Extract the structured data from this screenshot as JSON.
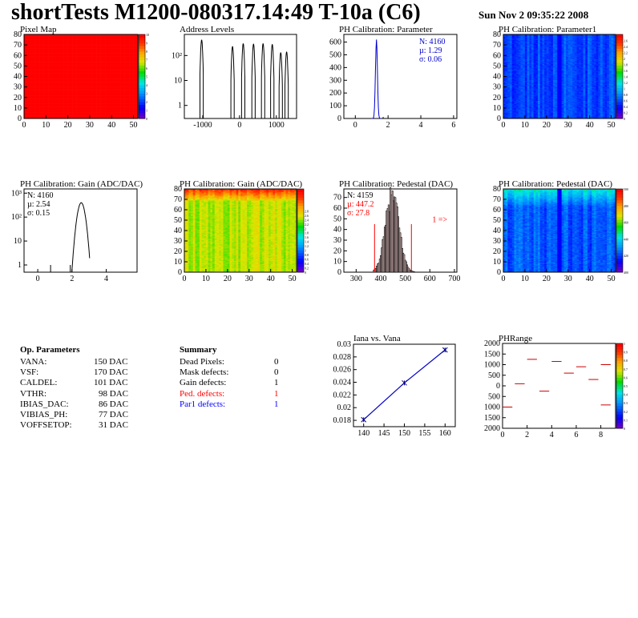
{
  "header": {
    "title": "shortTests M1200-080317.14:49 T-10a (C6)",
    "date": "Sun Nov  2 09:35:22 2008"
  },
  "chart_data": [
    {
      "id": "pixel-map",
      "type": "heatmap",
      "title": "Pixel Map",
      "xlim": [
        0,
        52
      ],
      "ylim": [
        0,
        80
      ],
      "xticks": [
        0,
        10,
        20,
        30,
        40,
        50
      ],
      "yticks": [
        0,
        10,
        20,
        30,
        40,
        50,
        60,
        70,
        80
      ],
      "zlim": [
        0,
        10
      ],
      "zticks": [
        0,
        1,
        2,
        3,
        4,
        5,
        6,
        7,
        8,
        9,
        10
      ],
      "uniform_value": 10
    },
    {
      "id": "address-levels",
      "type": "bar",
      "title": "Address Levels",
      "log_y": true,
      "xlim": [
        -1500,
        1550
      ],
      "xticks": [
        -1000,
        0,
        1000
      ],
      "ylim": [
        0.3,
        700
      ],
      "yticks": [
        {
          "value": 1,
          "label": "1"
        },
        {
          "value": 10,
          "label": "10"
        },
        {
          "value": 100,
          "label": "10²"
        }
      ],
      "peaks": [
        {
          "center": -1030,
          "height": 420
        },
        {
          "center": -190,
          "height": 230
        },
        {
          "center": 100,
          "height": 300
        },
        {
          "center": 380,
          "height": 290
        },
        {
          "center": 640,
          "height": 300
        },
        {
          "center": 890,
          "height": 280
        },
        {
          "center": 1120,
          "height": 130
        },
        {
          "center": 1280,
          "height": 140
        }
      ]
    },
    {
      "id": "ph-calibration-parameter",
      "type": "bar",
      "title": "PH Calibration: Parameter",
      "xlim": [
        -0.7,
        6.2
      ],
      "xticks": [
        0,
        2,
        4,
        6
      ],
      "ylim": [
        0,
        660
      ],
      "yticks": [
        0,
        100,
        200,
        300,
        400,
        500,
        600
      ],
      "stats": {
        "n": "N: 4160",
        "mean": "µ: 1.29",
        "sigma": "σ: 0.06"
      },
      "mean": 1.29,
      "sigma": 0.06,
      "peak": 620,
      "outliers": [
        {
          "x": 1.7,
          "y": 2
        }
      ]
    },
    {
      "id": "ph-calibration-parameter1",
      "type": "heatmap",
      "title": "PH Calibration: Parameter1",
      "xlim": [
        0,
        52
      ],
      "ylim": [
        0,
        80
      ],
      "xticks": [
        0,
        10,
        20,
        30,
        40,
        50
      ],
      "yticks": [
        0,
        10,
        20,
        30,
        40,
        50,
        60,
        70,
        80
      ],
      "zlim": [
        0,
        2.8
      ],
      "zticks": [
        0,
        0.2,
        0.4,
        0.6,
        0.8,
        1,
        1.2,
        1.4,
        1.6,
        1.8,
        2,
        2.2,
        2.4,
        2.6
      ],
      "base_value": 0.7
    },
    {
      "id": "ph-calibration-gain",
      "type": "bar",
      "title": "PH Calibration: Gain (ADC/DAC)",
      "log_y": true,
      "xlim": [
        -0.8,
        5.8
      ],
      "xticks": [
        0,
        2,
        4
      ],
      "ylim": [
        0.5,
        1500
      ],
      "yticks": [
        {
          "value": 1,
          "label": "1"
        },
        {
          "value": 10,
          "label": "10"
        },
        {
          "value": 100,
          "label": "10²"
        },
        {
          "value": 1000,
          "label": "10³"
        }
      ],
      "stats": {
        "n": "N: 4160",
        "mean": "µ: 2.54",
        "sigma": "σ: 0.15"
      },
      "mean": 2.54,
      "sigma": 0.15,
      "peak": 400,
      "outliers": [
        {
          "x": 0.75,
          "y": 1
        },
        {
          "x": 1.9,
          "y": 1
        }
      ]
    },
    {
      "id": "ph-calibration-gain-map",
      "type": "heatmap",
      "title": "PH Calibration: Gain (ADC/DAC)",
      "xlim": [
        0,
        52
      ],
      "ylim": [
        0,
        80
      ],
      "xticks": [
        0,
        10,
        20,
        30,
        40,
        50
      ],
      "yticks": [
        0,
        10,
        20,
        30,
        40,
        50,
        60,
        70,
        80
      ],
      "zlim": [
        0,
        3.8
      ],
      "zticks": [
        0,
        0.2,
        0.4,
        0.6,
        0.8,
        1,
        1.2,
        1.4,
        1.6,
        1.8,
        2,
        2.2,
        2.4,
        2.6,
        2.8
      ],
      "base_value": 2.5
    },
    {
      "id": "ph-calibration-pedestal",
      "type": "bar",
      "title": "PH Calibration: Pedestal (DAC)",
      "xlim": [
        250,
        710
      ],
      "xticks": [
        300,
        400,
        500,
        600,
        700
      ],
      "ylim": [
        0,
        78
      ],
      "yticks": [
        0,
        10,
        20,
        30,
        40,
        50,
        60,
        70
      ],
      "stats": {
        "n": "N: 4159",
        "mean": "µ: 447.2",
        "sigma": "σ: 27.8"
      },
      "mean": 447.2,
      "sigma": 27.8,
      "peak": 72,
      "cut_lines": [
        375,
        525
      ],
      "cut_height": 45,
      "annotation": "1 =>",
      "annotation_x": 610,
      "annotation_y": 47
    },
    {
      "id": "ph-calibration-pedestal-map",
      "type": "heatmap",
      "title": "PH Calibration: Pedestal (DAC)",
      "xlim": [
        0,
        52
      ],
      "ylim": [
        0,
        80
      ],
      "xticks": [
        0,
        10,
        20,
        30,
        40,
        50
      ],
      "yticks": [
        0,
        10,
        20,
        30,
        40,
        50,
        60,
        70,
        80
      ],
      "zlim": [
        400,
        500
      ],
      "zticks": [
        400,
        420,
        440,
        460,
        480,
        500
      ],
      "base_value": 447
    },
    {
      "id": "iana-vs-vana",
      "type": "line",
      "title": "Iana vs. Vana",
      "xlim": [
        137.5,
        162.5
      ],
      "ylim": [
        0.017,
        0.03
      ],
      "xticks": [
        140,
        145,
        150,
        155,
        160
      ],
      "yticks": [
        0.018,
        0.02,
        0.022,
        0.024,
        0.026,
        0.028,
        0.03
      ],
      "x": [
        140,
        150,
        160
      ],
      "y": [
        0.0181,
        0.0239,
        0.0291
      ]
    },
    {
      "id": "ph-range",
      "type": "scatter",
      "title": "PHRange",
      "xlim": [
        0,
        9.2
      ],
      "ylim": [
        -2000,
        2000
      ],
      "xticks": [
        0,
        2,
        4,
        6,
        8
      ],
      "yticks": [
        -2000,
        -1500,
        -1000,
        -500,
        0,
        500,
        1000,
        1500,
        2000
      ],
      "ytick_labels": [
        "2000",
        "1500",
        "1000",
        "500",
        "0",
        "500",
        "1000",
        "1500",
        "2000"
      ],
      "zticks": [
        0,
        0.1,
        0.2,
        0.3,
        0.4,
        0.5,
        0.6,
        0.7,
        0.8,
        0.9,
        1
      ],
      "segments": [
        {
          "x0": 0,
          "x1": 0.8,
          "y": -1000
        },
        {
          "x0": 1,
          "x1": 1.8,
          "y": 100
        },
        {
          "x0": 2,
          "x1": 2.8,
          "y": 1250
        },
        {
          "x0": 3,
          "x1": 3.8,
          "y": -250
        },
        {
          "x0": 4,
          "x1": 4.8,
          "y": 1150
        },
        {
          "x0": 5,
          "x1": 5.8,
          "y": 600
        },
        {
          "x0": 6,
          "x1": 6.8,
          "y": 900
        },
        {
          "x0": 7,
          "x1": 7.8,
          "y": 300
        },
        {
          "x0": 8,
          "x1": 8.8,
          "y": 1000
        },
        {
          "x0": 8,
          "x1": 8.8,
          "y": -900
        }
      ]
    }
  ],
  "op_parameters": {
    "heading": "Op. Parameters",
    "rows": [
      {
        "name": "VANA:",
        "value": "150 DAC"
      },
      {
        "name": "VSF:",
        "value": "170 DAC"
      },
      {
        "name": "CALDEL:",
        "value": "101 DAC"
      },
      {
        "name": "VTHR:",
        "value": "98 DAC"
      },
      {
        "name": "IBIAS_DAC:",
        "value": "86 DAC"
      },
      {
        "name": "VIBIAS_PH:",
        "value": "77 DAC"
      },
      {
        "name": "VOFFSETOP:",
        "value": "31 DAC"
      }
    ]
  },
  "summary": {
    "heading": "Summary",
    "rows": [
      {
        "name": "Dead Pixels:",
        "value": "0",
        "color": "#000000"
      },
      {
        "name": "Mask defects:",
        "value": "0",
        "color": "#000000"
      },
      {
        "name": "Gain defects:",
        "value": "1",
        "color": "#000000"
      },
      {
        "name": "Ped. defects:",
        "value": "1",
        "color": "#ff0000"
      },
      {
        "name": "Par1 defects:",
        "value": "1",
        "color": "#0000ff"
      }
    ]
  }
}
